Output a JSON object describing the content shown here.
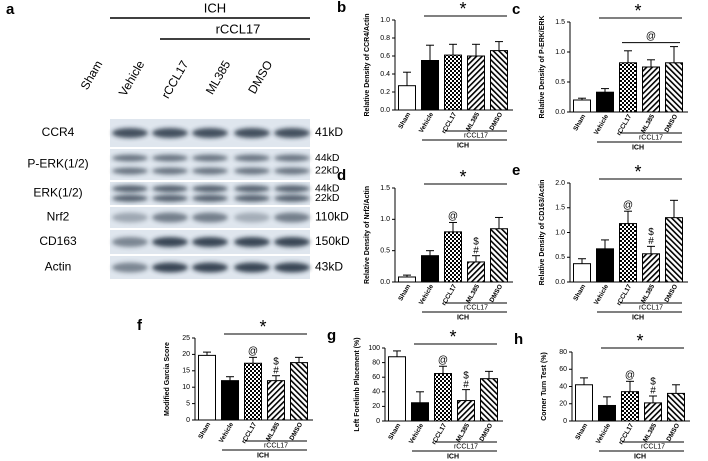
{
  "blot": {
    "panel": "a",
    "group_labels": [
      "ICH",
      "rCCL17"
    ],
    "lanes": [
      "Sham",
      "Vehicle",
      "rCCL17",
      "ML385",
      "DMSO"
    ],
    "rows": [
      {
        "name": "CCR4",
        "sizes": [
          "41kD"
        ]
      },
      {
        "name": "P-ERK(1/2)",
        "sizes": [
          "44kD",
          "22kD"
        ]
      },
      {
        "name": "ERK(1/2)",
        "sizes": [
          "44kD",
          "22kD"
        ]
      },
      {
        "name": "Nrf2",
        "sizes": [
          "110kD"
        ]
      },
      {
        "name": "CD163",
        "sizes": [
          "150kD"
        ]
      },
      {
        "name": "Actin",
        "sizes": [
          "43kD"
        ]
      }
    ]
  },
  "chart_data": [
    {
      "type": "bar",
      "panel": "b",
      "ylabel": "Relative Density of CCR4/Actin",
      "categories": [
        "Sham",
        "Vehicle",
        "rCCL17",
        "ML385",
        "DMSO"
      ],
      "values": [
        0.27,
        0.55,
        0.61,
        0.6,
        0.66
      ],
      "errors": [
        0.15,
        0.17,
        0.12,
        0.13,
        0.1
      ],
      "ylim": [
        0,
        1.0
      ],
      "yticks": [
        {
          "value": 0,
          "label": "0.0"
        },
        0.2,
        0.4,
        0.6,
        0.8,
        {
          "value": 1,
          "label": "1.0"
        }
      ],
      "significance": "*",
      "subgroup": "rCCL17",
      "group": "ICH",
      "color": "#000000"
    },
    {
      "type": "bar",
      "panel": "c",
      "ylabel": "Relative Density of P-ERK/ERK",
      "categories": [
        "Sham",
        "Vehicle",
        "rCCL17",
        "ML385",
        "DMSO"
      ],
      "values": [
        0.2,
        0.33,
        0.82,
        0.75,
        0.82
      ],
      "errors": [
        0.03,
        0.06,
        0.2,
        0.12,
        0.27
      ],
      "ylim": [
        0,
        1.5
      ],
      "yticks": [
        {
          "value": 0,
          "label": "0.0"
        },
        0.5,
        {
          "value": 1,
          "label": "1.0"
        },
        1.5
      ],
      "significance": "*",
      "bracket_label": "@",
      "subgroup": "rCCL17",
      "group": "ICH",
      "color": "#000000"
    },
    {
      "type": "bar",
      "panel": "d",
      "ylabel": "Relative Density of Nrf2/Actin",
      "categories": [
        "Sham",
        "Vehicle",
        "rCCL17",
        "ML385",
        "DMSO"
      ],
      "values": [
        0.08,
        0.42,
        0.8,
        0.32,
        0.85
      ],
      "errors": [
        0.03,
        0.08,
        0.15,
        0.1,
        0.18
      ],
      "ylim": [
        0,
        1.5
      ],
      "yticks": [
        {
          "value": 0,
          "label": "0.0"
        },
        0.5,
        {
          "value": 1,
          "label": "1.0"
        },
        1.5
      ],
      "significance": "*",
      "marks_top": [
        null,
        null,
        "@",
        "$",
        null
      ],
      "marks_bottom": [
        null,
        null,
        null,
        "#",
        null
      ],
      "subgroup": "rCCL17",
      "group": "ICH",
      "color": "#000000"
    },
    {
      "type": "bar",
      "panel": "e",
      "ylabel": "Relative Density of CD163/Actin",
      "categories": [
        "Sham",
        "Vehicle",
        "rCCL17",
        "ML385",
        "DMSO"
      ],
      "values": [
        0.37,
        0.67,
        1.18,
        0.57,
        1.3
      ],
      "errors": [
        0.1,
        0.18,
        0.25,
        0.15,
        0.35
      ],
      "ylim": [
        0,
        2.0
      ],
      "yticks": [
        {
          "value": 0,
          "label": "0.0"
        },
        0.5,
        {
          "value": 1,
          "label": "1.0"
        },
        1.5,
        {
          "value": 2,
          "label": "2.0"
        }
      ],
      "significance": "*",
      "marks_top": [
        null,
        null,
        "@",
        "$",
        null
      ],
      "marks_bottom": [
        null,
        null,
        null,
        "#",
        null
      ],
      "subgroup": "rCCL17",
      "group": "ICH",
      "color": "#000000"
    },
    {
      "type": "bar",
      "panel": "f",
      "ylabel": "Modified Garcia Score",
      "categories": [
        "Sham",
        "Vehicle",
        "rCCL17",
        "ML385",
        "DMSO"
      ],
      "values": [
        19.7,
        12,
        17.3,
        12,
        17.5
      ],
      "errors": [
        1,
        1.2,
        1.8,
        1.5,
        1.6
      ],
      "ylim": [
        0,
        25
      ],
      "yticks": [
        0,
        5,
        10,
        15,
        20,
        25
      ],
      "significance": "*",
      "marks_top": [
        null,
        null,
        "@",
        "$",
        null
      ],
      "marks_bottom": [
        null,
        null,
        null,
        "#",
        null
      ],
      "subgroup": "rCCL17",
      "group": "ICH",
      "color": "#000000"
    },
    {
      "type": "bar",
      "panel": "g",
      "ylabel": "Left Forelimb Placement (%)",
      "categories": [
        "Sham",
        "Vehicle",
        "rCCL17",
        "ML385",
        "DMSO"
      ],
      "values": [
        88,
        25,
        65,
        28,
        58
      ],
      "errors": [
        8,
        15,
        10,
        15,
        10
      ],
      "ylim": [
        0,
        100
      ],
      "yticks": [
        0,
        20,
        40,
        60,
        80,
        100
      ],
      "significance": "*",
      "marks_top": [
        null,
        null,
        "@",
        "$",
        null
      ],
      "marks_bottom": [
        null,
        null,
        null,
        "#",
        null
      ],
      "subgroup": "rCCL17",
      "group": "ICH",
      "color": "#000000"
    },
    {
      "type": "bar",
      "panel": "h",
      "ylabel": "Corner Turn Test (%)",
      "categories": [
        "Sham",
        "Vehicle",
        "rCCL17",
        "ML385",
        "DMSO"
      ],
      "values": [
        42,
        18,
        34,
        21,
        32
      ],
      "errors": [
        8,
        10,
        12,
        8,
        10
      ],
      "ylim": [
        0,
        80
      ],
      "yticks": [
        0,
        20,
        40,
        60,
        80
      ],
      "significance": "*",
      "marks_top": [
        null,
        null,
        "@",
        "$",
        null
      ],
      "marks_bottom": [
        null,
        null,
        null,
        "#",
        null
      ],
      "subgroup": "rCCL17",
      "group": "ICH",
      "color": "#000000"
    }
  ]
}
